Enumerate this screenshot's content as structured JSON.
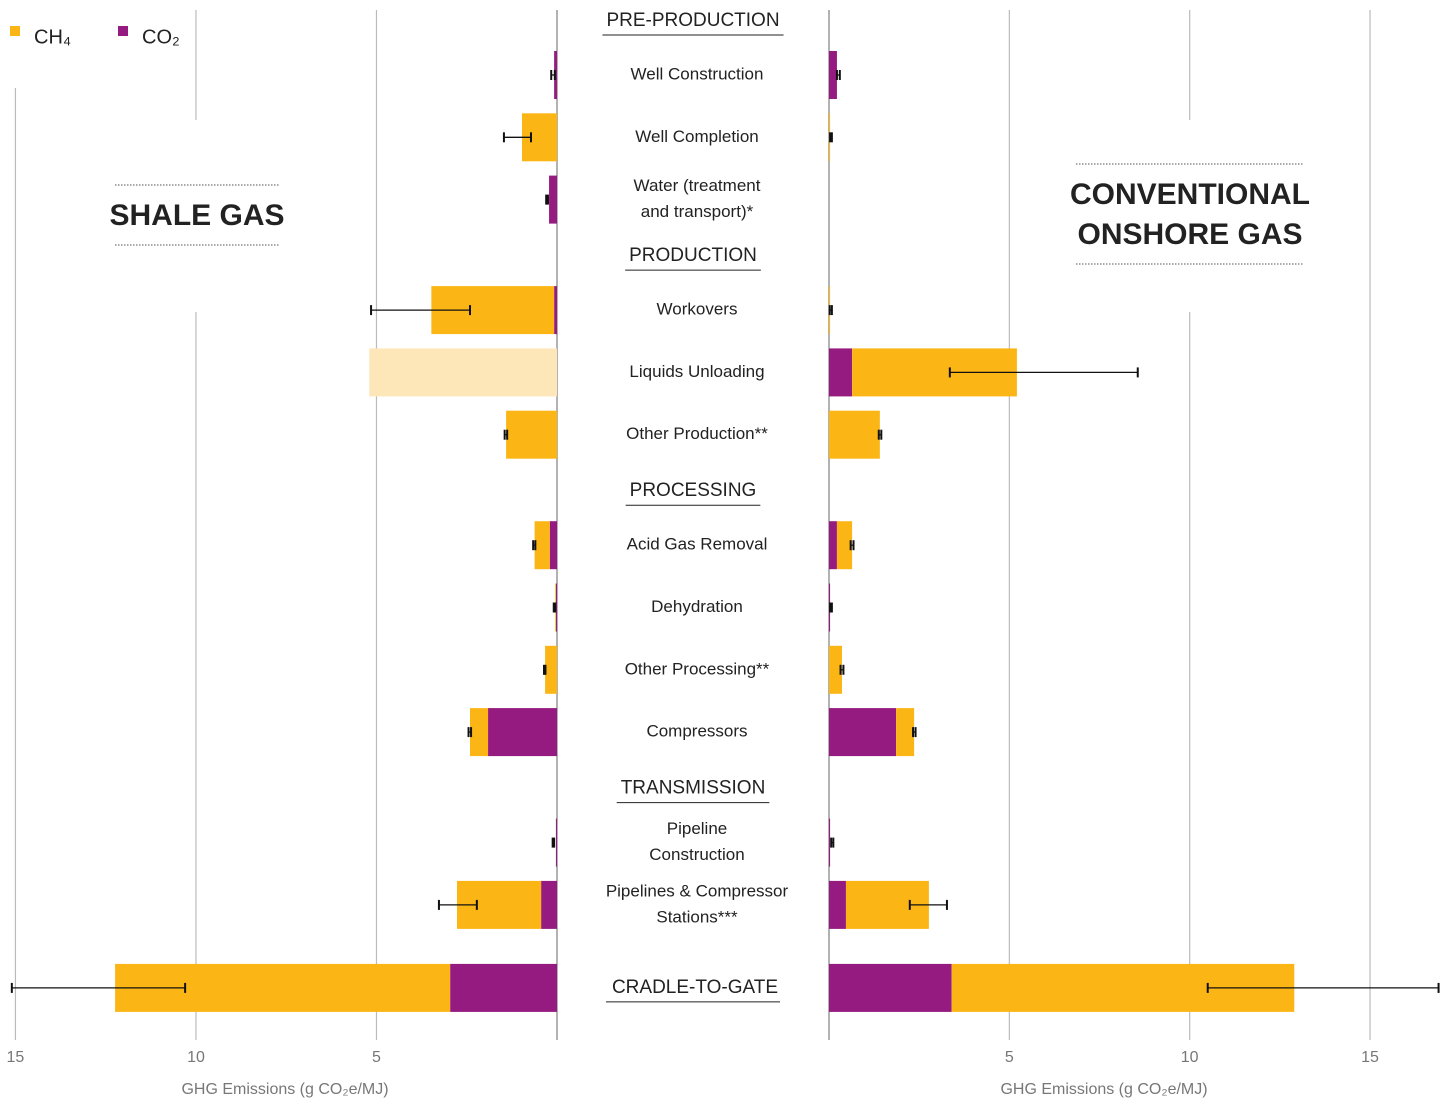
{
  "chart_data": {
    "type": "butterfly",
    "legend": [
      {
        "name": "CH₄",
        "color": "#fbb616"
      },
      {
        "name": "CO₂",
        "color": "#951b81"
      }
    ],
    "categories": [
      [
        "Well Construction"
      ],
      [
        "Well Completion"
      ],
      [
        "Water (treatment",
        "and transport)*"
      ],
      [
        "Workovers"
      ],
      [
        "Liquids Unloading"
      ],
      [
        "Other Production**"
      ],
      [
        "Acid Gas Removal"
      ],
      [
        "Dehydration"
      ],
      [
        "Other Processing**"
      ],
      [
        "Compressors"
      ],
      [
        "Pipeline",
        "Construction"
      ],
      [
        "Pipelines & Compressor",
        "Stations***"
      ],
      [
        "CRADLE-TO-GATE"
      ]
    ],
    "sections": [
      {
        "title": "PRE-PRODUCTION",
        "rows": 3
      },
      {
        "title": "PRODUCTION",
        "rows": 3
      },
      {
        "title": "PROCESSING",
        "rows": 4
      },
      {
        "title": "TRANSMISSION",
        "rows": 2
      }
    ],
    "panels": [
      {
        "title": [
          "SHALE GAS"
        ],
        "xlabel": "GHG Emissions (g CO₂e/MJ)",
        "xlim": [
          0,
          15.4
        ],
        "xticks": [
          5,
          10,
          15
        ],
        "co2": [
          0.08,
          0,
          0.22,
          0.08,
          null,
          0,
          0.2,
          0.03,
          0,
          1.91,
          0.03,
          0.44,
          2.96
        ],
        "ch4": [
          0,
          0.97,
          0,
          3.4,
          null,
          1.41,
          0.42,
          0.02,
          0.33,
          0.5,
          0,
          2.33,
          9.28
        ],
        "shaded": [
          null,
          null,
          null,
          null,
          5.2,
          null,
          null,
          null,
          null,
          null,
          null,
          null,
          null
        ],
        "shaded_color": "#fde6b8",
        "err": [
          [
            0.06,
            0.16
          ],
          [
            0.72,
            1.47
          ],
          [
            0.25,
            0.3
          ],
          [
            2.41,
            5.15
          ],
          null,
          [
            1.38,
            1.45
          ],
          [
            0.6,
            0.66
          ],
          [
            0.05,
            0.09
          ],
          [
            0.32,
            0.36
          ],
          [
            2.38,
            2.45
          ],
          [
            0.08,
            0.12
          ],
          [
            2.22,
            3.27
          ],
          [
            10.3,
            15.1
          ]
        ]
      },
      {
        "title": [
          "CONVENTIONAL",
          "ONSHORE GAS"
        ],
        "xlabel": "GHG Emissions (g CO₂e/MJ)",
        "xlim": [
          0,
          17.3
        ],
        "xticks": [
          5,
          10,
          15
        ],
        "co2": [
          0.22,
          0,
          null,
          0,
          0.64,
          0,
          0.22,
          0.03,
          0,
          1.86,
          0.03,
          0.47,
          3.4
        ],
        "ch4": [
          0,
          0.03,
          null,
          0.03,
          4.57,
          1.41,
          0.42,
          0,
          0.36,
          0.5,
          0,
          2.3,
          9.5
        ],
        "err": [
          [
            0.22,
            0.3
          ],
          [
            0.03,
            0.08
          ],
          null,
          [
            0.02,
            0.08
          ],
          [
            3.35,
            8.56
          ],
          [
            1.38,
            1.45
          ],
          [
            0.6,
            0.68
          ],
          [
            0.03,
            0.08
          ],
          [
            0.32,
            0.4
          ],
          [
            2.33,
            2.4
          ],
          [
            0.06,
            0.12
          ],
          [
            2.24,
            3.27
          ],
          [
            10.5,
            16.9
          ]
        ]
      }
    ]
  }
}
